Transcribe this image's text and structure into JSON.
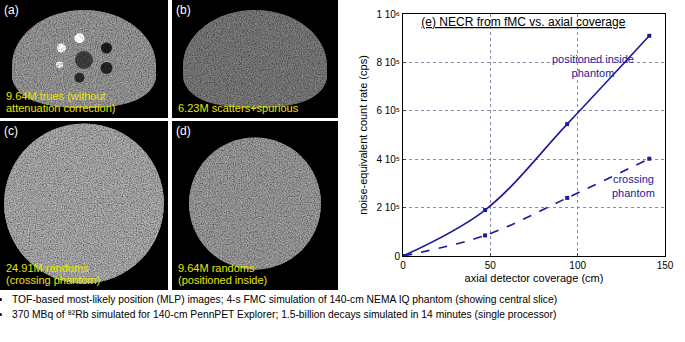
{
  "panels": [
    {
      "label": "(a)",
      "caption": [
        "9.64M trues (without",
        "attenuation correction)"
      ]
    },
    {
      "label": "(b)",
      "caption": [
        "6.23M scatters+spurious"
      ]
    },
    {
      "label": "(c)",
      "caption": [
        "24.91M randoms",
        "(crossing phantom)"
      ]
    },
    {
      "label": "(d)",
      "caption": [
        "9.64M randoms",
        "(positioned inside)"
      ]
    }
  ],
  "chart_data": {
    "type": "line",
    "title": "(e) NECR from fMC vs. axial coverage",
    "x_label": "axial detector coverage (cm)",
    "y_label": "noise-equivalent count rate (cps)",
    "x": [
      0,
      47,
      94,
      141
    ],
    "series": [
      {
        "name": "positioned inside phantom",
        "color": "#1a1a9c",
        "line_style": "solid",
        "marker": "square",
        "values": [
          0,
          190000,
          545000,
          910000
        ]
      },
      {
        "name": "crossing phantom",
        "color": "#1a1a9c",
        "line_style": "dashed",
        "marker": "square",
        "values": [
          0,
          85000,
          240000,
          402000
        ]
      }
    ],
    "xlim": [
      0,
      150
    ],
    "xticks": [
      0,
      50,
      100,
      150
    ],
    "ylim": [
      0,
      1000000
    ],
    "yticks": [
      0,
      {
        "value": 200000,
        "label": "2 10⁵"
      },
      {
        "value": 400000,
        "label": "4 10⁵"
      },
      {
        "value": 600000,
        "label": "6 10⁵"
      },
      {
        "value": 800000,
        "label": "8 10⁵"
      },
      {
        "value": 1000000,
        "label": "1 10⁶"
      }
    ],
    "grid": true
  },
  "notes": [
    "TOF-based most-likely position (MLP) images; 4-s FMC simulation of 140-cm NEMA IQ phantom (showing central slice)",
    "370 MBq of ⁸²Rb simulated for 140-cm PennPET Explorer; 1.5-billion decays simulated in 14 minutes (single processor)"
  ]
}
